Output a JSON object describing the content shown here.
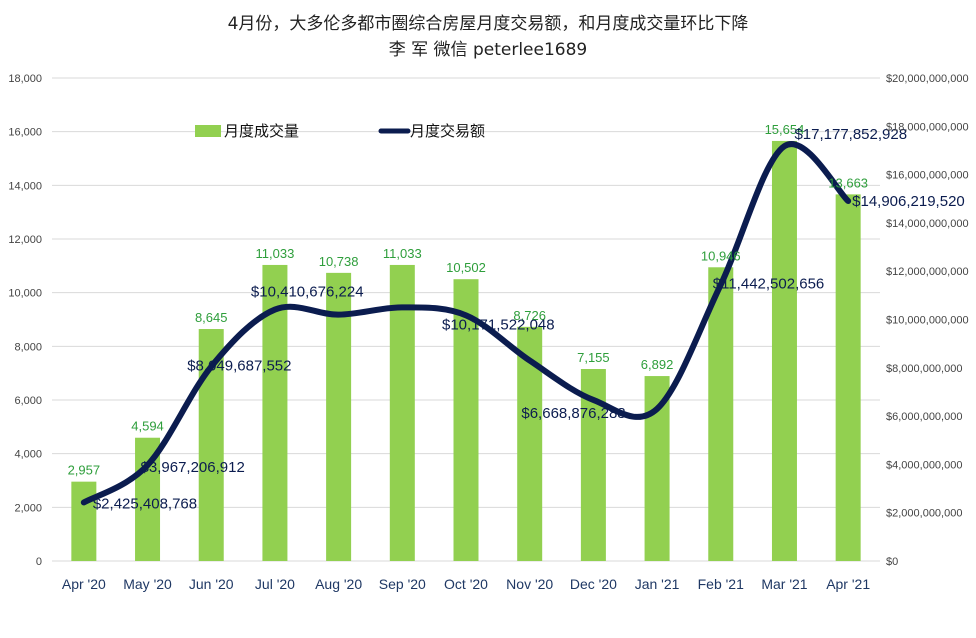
{
  "title_line1": "4月份，大多伦多都市圈综合房屋月度交易额，和月度成交量环比下降",
  "title_line2": "李 军  微信 peterlee1689",
  "chart_data": {
    "type": "bar",
    "categories": [
      "Apr '20",
      "May '20",
      "Jun '20",
      "Jul '20",
      "Aug '20",
      "Sep '20",
      "Oct '20",
      "Nov '20",
      "Dec '20",
      "Jan '21",
      "Feb '21",
      "Mar '21",
      "Apr '21"
    ],
    "series": [
      {
        "name": "月度成交量",
        "type": "bar",
        "axis": "left",
        "color": "#92d050",
        "values": [
          2957,
          4594,
          8645,
          11033,
          10738,
          11033,
          10502,
          8726,
          7155,
          6892,
          10946,
          15654,
          13663
        ],
        "labels": [
          "2,957",
          "4,594",
          "8,645",
          "11,033",
          "10,738",
          "11,033",
          "10,502",
          "8,726",
          "7,155",
          "6,892",
          "10,946",
          "15,654",
          "13,663"
        ]
      },
      {
        "name": "月度交易额",
        "type": "line",
        "axis": "right",
        "color": "#0b1c4f",
        "values": [
          2425408768,
          3967206912,
          8049687552,
          10410676224,
          10200000000,
          10500000000,
          10171522048,
          8300000000,
          6668876288,
          6300000000,
          11442502656,
          17177852928,
          14906219520
        ],
        "labels": [
          "$2,425,408,768",
          "$3,967,206,912",
          "$8,049,687,552",
          "$10,410,676,224",
          "",
          "",
          "$10,171,522,048",
          "",
          "$6,668,876,288",
          "",
          "$11,442,502,656",
          "$17,177,852,928",
          "$14,906,219,520"
        ]
      }
    ],
    "y_left": {
      "min": 0,
      "max": 18000,
      "ticks": [
        "0",
        "2,000",
        "4,000",
        "6,000",
        "8,000",
        "10,000",
        "12,000",
        "14,000",
        "16,000",
        "18,000"
      ]
    },
    "y_right": {
      "min": 0,
      "max": 20000000000,
      "ticks": [
        "$0",
        "$2,000,000,000",
        "$4,000,000,000",
        "$6,000,000,000",
        "$8,000,000,000",
        "$10,000,000,000",
        "$12,000,000,000",
        "$14,000,000,000",
        "$16,000,000,000",
        "$18,000,000,000",
        "$20,000,000,000"
      ]
    },
    "grid": true,
    "legend_position": "top-left"
  }
}
